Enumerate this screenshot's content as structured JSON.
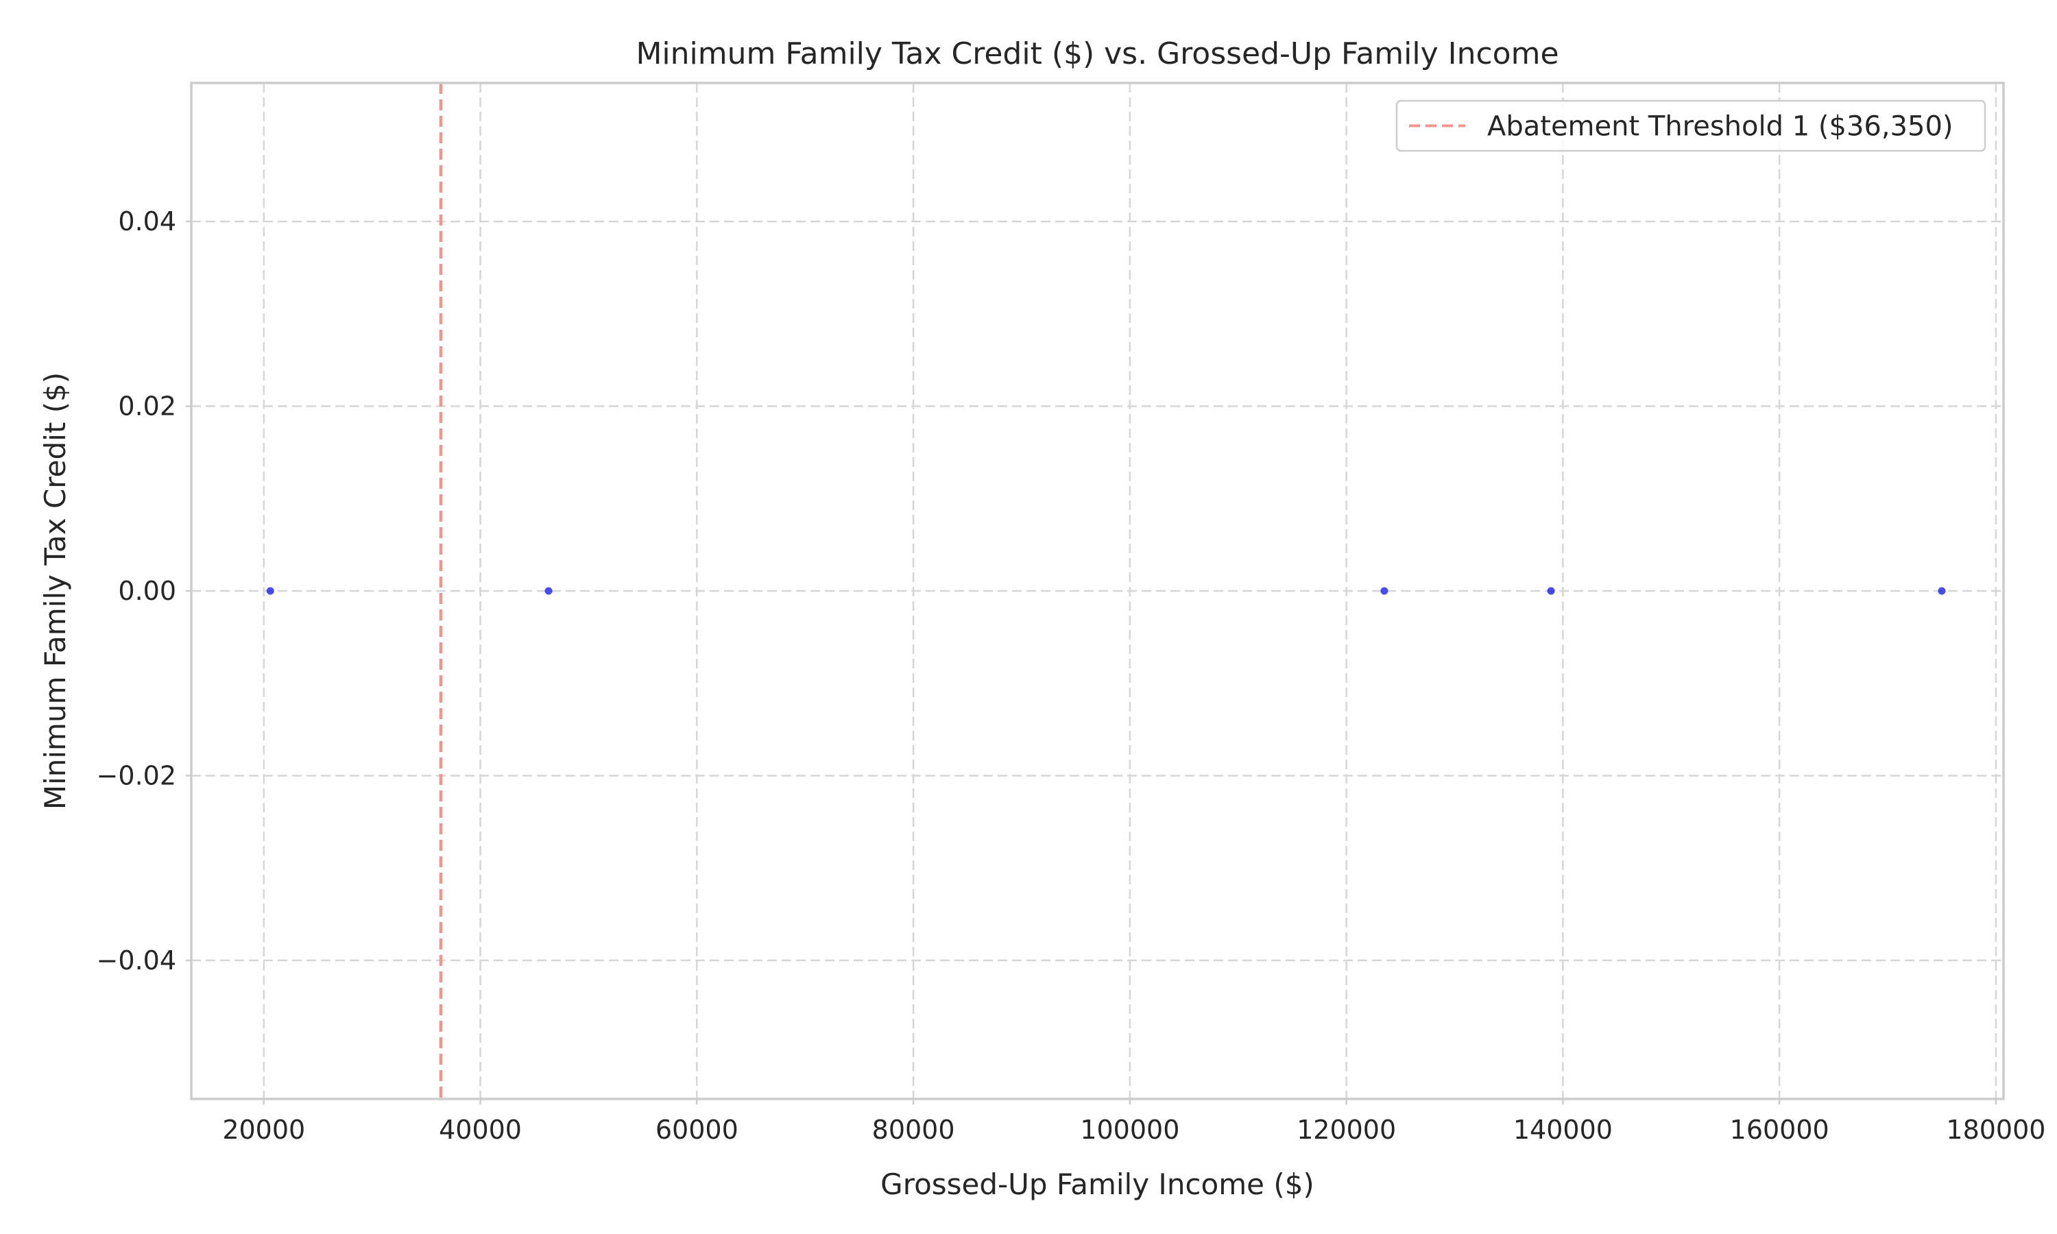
{
  "chart_data": {
    "type": "scatter",
    "title": "Minimum Family Tax Credit ($) vs. Grossed-Up Family Income",
    "xlabel": "Grossed-Up Family Income ($)",
    "ylabel": "Minimum Family Tax Credit ($)",
    "xlim": [
      13300,
      180700
    ],
    "ylim": [
      -0.055,
      0.055
    ],
    "xticks": [
      20000,
      40000,
      60000,
      80000,
      100000,
      120000,
      140000,
      160000,
      180000
    ],
    "xtick_labels": [
      "20000",
      "40000",
      "60000",
      "80000",
      "100000",
      "120000",
      "140000",
      "160000",
      "180000"
    ],
    "yticks": [
      0.04,
      0.02,
      0.0,
      -0.02,
      -0.04
    ],
    "ytick_labels": [
      "0.04",
      "0.02",
      "0.00",
      "−0.02",
      "−0.04"
    ],
    "grid": true,
    "series": [
      {
        "type": "scatter",
        "color": "#0000ee",
        "x": [
          20600,
          46300,
          123500,
          138900,
          175000
        ],
        "y": [
          0,
          0,
          0,
          0,
          0
        ]
      }
    ],
    "reference_lines": [
      {
        "orientation": "vertical",
        "x": 36350,
        "color": "#f4948f",
        "style": "dashed",
        "label": "Abatement Threshold 1 ($36,350)"
      }
    ],
    "legend": {
      "position": "top-right",
      "entries": [
        "Abatement Threshold 1 ($36,350)"
      ]
    }
  }
}
